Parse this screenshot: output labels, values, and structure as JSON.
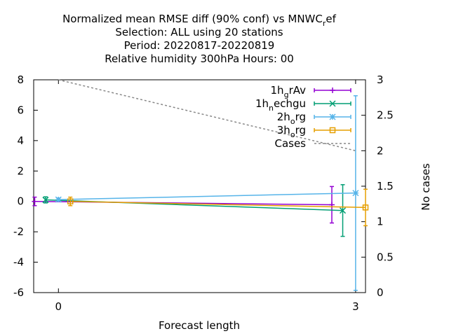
{
  "chart_data": {
    "type": "line",
    "title_lines": [
      "Normalized mean RMSE diff (90% conf) vs MNWC_ref",
      "Selection: ALL using    20 stations",
      "Period: 20220817-20220819",
      "Relative humidity 300hPa   Hours:  00"
    ],
    "xlabel": "Forecast length",
    "ylabel": "",
    "y2label": "No cases",
    "xlim": [
      -0.25,
      3.1
    ],
    "ylim": [
      -6,
      8
    ],
    "y2lim": [
      0,
      3
    ],
    "x_ticks": [
      0,
      3
    ],
    "y_ticks": [
      -6,
      -4,
      -2,
      0,
      2,
      4,
      6,
      8
    ],
    "y2_ticks": [
      0,
      0.5,
      1,
      1.5,
      2,
      2.5,
      3
    ],
    "grid": false,
    "legend_position": "top-right",
    "series": [
      {
        "name": "1h_grAv",
        "legend_base": "1h",
        "legend_sub": "g",
        "legend_rest": "rAv",
        "color": "#9400d3",
        "marker": "plus",
        "x": [
          -0.24,
          2.76
        ],
        "y": [
          0.0,
          -0.22
        ],
        "err": [
          0.28,
          1.2
        ]
      },
      {
        "name": "1h_nechgu",
        "legend_base": "1h",
        "legend_sub": "n",
        "legend_rest": "echgu",
        "color": "#009e73",
        "marker": "x",
        "x": [
          -0.13,
          2.87
        ],
        "y": [
          0.1,
          -0.6
        ],
        "err": [
          0.2,
          1.7
        ]
      },
      {
        "name": "2h_org",
        "legend_base": "2h",
        "legend_sub": "o",
        "legend_rest": "rg",
        "color": "#56b4e9",
        "marker": "star",
        "x": [
          0.0,
          3.0
        ],
        "y": [
          0.12,
          0.55
        ],
        "err": [
          0.1,
          6.4
        ]
      },
      {
        "name": "3h_org",
        "legend_base": "3h",
        "legend_sub": "o",
        "legend_rest": "rg",
        "color": "#e69f00",
        "marker": "square",
        "x": [
          0.12,
          3.12
        ],
        "y": [
          0.0,
          -0.4
        ],
        "err": [
          0.28,
          1.2
        ]
      }
    ],
    "cases": {
      "name": "Cases",
      "color": "#888888",
      "x": [
        0.0,
        3.0
      ],
      "y2": [
        3,
        2
      ]
    }
  }
}
